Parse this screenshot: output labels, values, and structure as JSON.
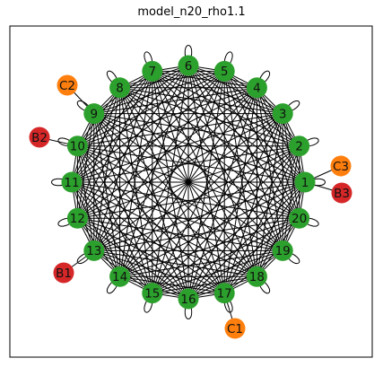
{
  "title": "model_n20_rho1.1",
  "colors": {
    "main_node": "#2ca02c",
    "leaf_orange": "#ff7f0e",
    "leaf_red": "#d62728",
    "edge": "#000000",
    "frame": "#000000"
  },
  "graph": {
    "ring_nodes": [
      "1",
      "2",
      "3",
      "4",
      "5",
      "6",
      "7",
      "8",
      "9",
      "10",
      "11",
      "12",
      "13",
      "14",
      "15",
      "16",
      "17",
      "18",
      "19",
      "20"
    ],
    "complete_graph_among_ring_nodes": true,
    "self_loops_on_all_ring_nodes": true,
    "leaves": [
      {
        "label": "C3",
        "attached_to": "1",
        "color": "orange"
      },
      {
        "label": "B3",
        "attached_to": "1",
        "color": "red"
      },
      {
        "label": "C2",
        "attached_to": "9",
        "color": "orange"
      },
      {
        "label": "B2",
        "attached_to": "10",
        "color": "red"
      },
      {
        "label": "B1",
        "attached_to": "13",
        "color": "red"
      },
      {
        "label": "C1",
        "attached_to": "17",
        "color": "orange"
      }
    ]
  }
}
